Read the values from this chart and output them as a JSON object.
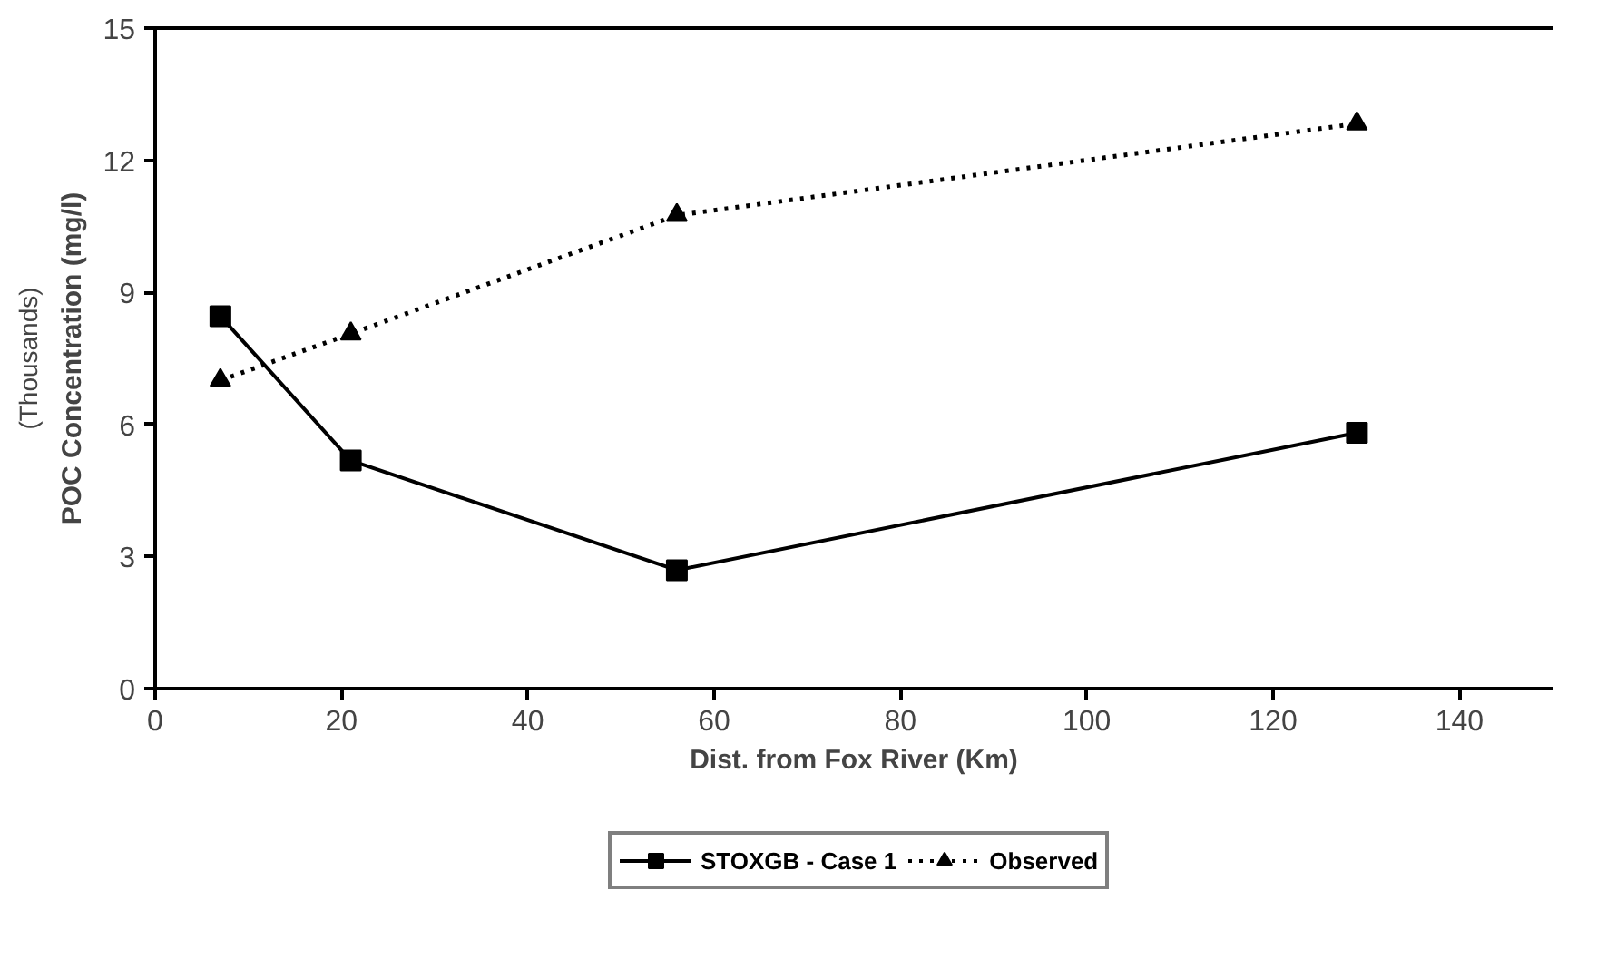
{
  "chart_data": {
    "type": "line",
    "xlabel": "Dist. from Fox River (Km)",
    "ylabel": "POC Concentration (mg/l)",
    "subtitle": "(Thousands)",
    "xlim": [
      0,
      150
    ],
    "xticks": [
      0,
      20,
      40,
      60,
      80,
      100,
      120,
      140
    ],
    "ylim": [
      0,
      15
    ],
    "yticks": [
      0,
      3,
      6,
      9,
      12,
      15
    ],
    "x": [
      7,
      21,
      56,
      129
    ],
    "series": [
      {
        "name": "STOXGB - Case 1",
        "color": "#000000",
        "values": [
          8.46,
          5.18,
          2.69,
          5.81
        ],
        "marker": "square",
        "line_style": "solid"
      },
      {
        "name": "Observed",
        "color": "#000000",
        "values": [
          7.0,
          8.06,
          10.75,
          12.83
        ],
        "marker": "triangle",
        "line_style": "dotted"
      }
    ],
    "grid": false,
    "legend": "bottom"
  }
}
